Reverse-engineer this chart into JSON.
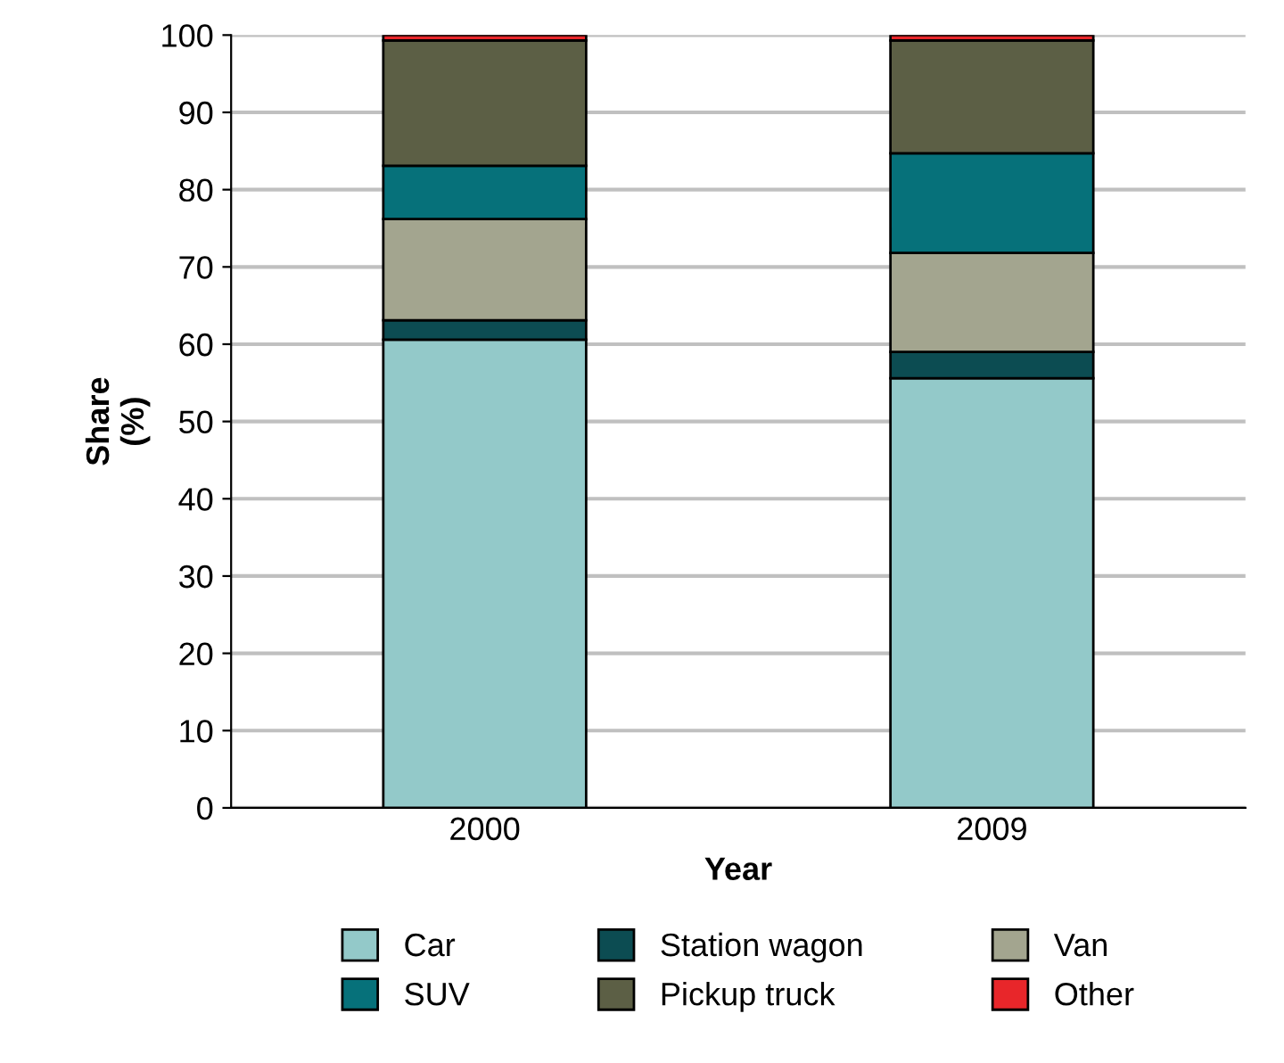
{
  "chart_data": {
    "type": "bar",
    "stacked": true,
    "xlabel": "Year",
    "ylabel": "Share\n(%)",
    "categories": [
      "2000",
      "2009"
    ],
    "series": [
      {
        "name": "Car",
        "color": "#93c9c9",
        "values": [
          60.6,
          55.6
        ]
      },
      {
        "name": "Station wagon",
        "color": "#0c4c52",
        "values": [
          2.5,
          3.4
        ]
      },
      {
        "name": "Van",
        "color": "#a3a58f",
        "values": [
          13.1,
          12.8
        ]
      },
      {
        "name": "SUV",
        "color": "#06717a",
        "values": [
          6.9,
          12.9
        ]
      },
      {
        "name": "Pickup truck",
        "color": "#5c5f45",
        "values": [
          16.2,
          14.6
        ]
      },
      {
        "name": "Other",
        "color": "#e8262a",
        "values": [
          0.7,
          0.7
        ]
      }
    ],
    "ylim": [
      0,
      100
    ],
    "yticks": [
      0,
      10,
      20,
      30,
      40,
      50,
      60,
      70,
      80,
      90,
      100
    ],
    "grid": "y",
    "legend": "bottom"
  }
}
